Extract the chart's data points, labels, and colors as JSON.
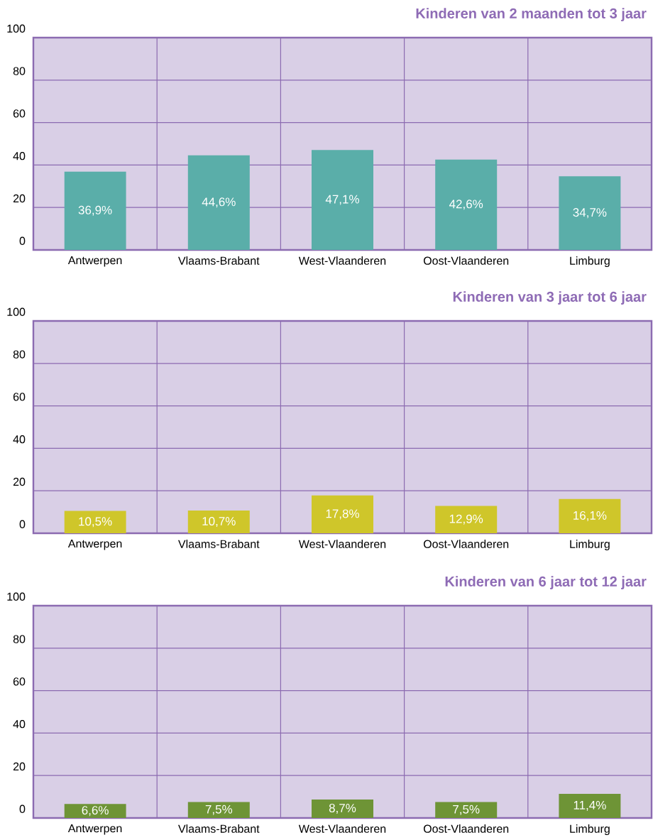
{
  "chart_data": [
    {
      "type": "bar",
      "title": "Kinderen van 2 maanden tot 3 jaar",
      "categories": [
        "Antwerpen",
        "Vlaams-Brabant",
        "West-Vlaanderen",
        "Oost-Vlaanderen",
        "Limburg"
      ],
      "values": [
        36.9,
        44.6,
        47.1,
        42.6,
        34.7
      ],
      "value_labels": [
        "36,9%",
        "44,6%",
        "47,1%",
        "42,6%",
        "34,7%"
      ],
      "color": "#5aaea9",
      "ylim": [
        0,
        100
      ],
      "yticks": [
        0,
        20,
        40,
        60,
        80,
        100
      ],
      "grid": true
    },
    {
      "type": "bar",
      "title": "Kinderen van 3 jaar tot 6 jaar",
      "categories": [
        "Antwerpen",
        "Vlaams-Brabant",
        "West-Vlaanderen",
        "Oost-Vlaanderen",
        "Limburg"
      ],
      "values": [
        10.5,
        10.7,
        17.8,
        12.9,
        16.1
      ],
      "value_labels": [
        "10,5%",
        "10,7%",
        "17,8%",
        "12,9%",
        "16,1%"
      ],
      "color": "#cfc62a",
      "ylim": [
        0,
        100
      ],
      "yticks": [
        0,
        20,
        40,
        60,
        80,
        100
      ],
      "grid": true
    },
    {
      "type": "bar",
      "title": "Kinderen van 6 jaar tot 12 jaar",
      "categories": [
        "Antwerpen",
        "Vlaams-Brabant",
        "West-Vlaanderen",
        "Oost-Vlaanderen",
        "Limburg"
      ],
      "values": [
        6.6,
        7.5,
        8.7,
        7.5,
        11.4
      ],
      "value_labels": [
        "6,6%",
        "7,5%",
        "8,7%",
        "7,5%",
        "11,4%"
      ],
      "color": "#6e9436",
      "ylim": [
        0,
        100
      ],
      "yticks": [
        0,
        20,
        40,
        60,
        80,
        100
      ],
      "grid": true
    }
  ]
}
